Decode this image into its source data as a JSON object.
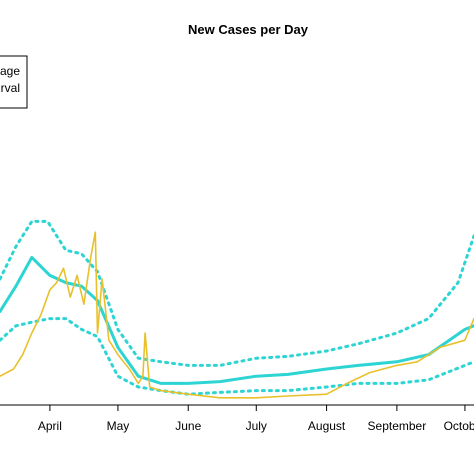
{
  "chart_data": {
    "type": "line",
    "title": "New Cases per Day",
    "xlabel": "",
    "ylabel": "",
    "grid": false,
    "legend_placement": "top-left",
    "legend_entries_visible": [
      "rage",
      "rval"
    ],
    "x_tick_labels": [
      "April",
      "May",
      "June",
      "July",
      "August",
      "September",
      "October"
    ],
    "x_day_of_month_ticks": [
      "2020-04-01",
      "2020-05-01",
      "2020-06-01",
      "2020-07-01",
      "2020-08-01",
      "2020-09-01",
      "2020-10-01"
    ],
    "xlim": [
      "2020-03-10",
      "2020-10-05"
    ],
    "ylim": [
      0,
      100
    ],
    "colors": {
      "average": "#2dd4d4",
      "interval": "#2dd4d4",
      "observed": "#e8c12a"
    },
    "series": [
      {
        "style": "cyan-solid-thick",
        "x": [
          "2020-03-10",
          "2020-03-17",
          "2020-03-24",
          "2020-04-01",
          "2020-04-08",
          "2020-04-15",
          "2020-04-22",
          "2020-05-01",
          "2020-05-10",
          "2020-05-20",
          "2020-06-01",
          "2020-06-15",
          "2020-07-01",
          "2020-07-15",
          "2020-08-01",
          "2020-08-15",
          "2020-09-01",
          "2020-09-15",
          "2020-10-01",
          "2020-10-05"
        ],
        "values": [
          26,
          33,
          41,
          36,
          34,
          33,
          29,
          16,
          8,
          6,
          6,
          6.5,
          8,
          8.5,
          10,
          11,
          12,
          14,
          21,
          22
        ]
      },
      {
        "style": "cyan-dotted-upper",
        "x": [
          "2020-03-10",
          "2020-03-17",
          "2020-03-24",
          "2020-03-31",
          "2020-04-08",
          "2020-04-15",
          "2020-04-22",
          "2020-05-01",
          "2020-05-10",
          "2020-05-20",
          "2020-06-01",
          "2020-06-15",
          "2020-07-01",
          "2020-07-15",
          "2020-08-01",
          "2020-08-15",
          "2020-09-01",
          "2020-09-15",
          "2020-09-28",
          "2020-10-05"
        ],
        "values": [
          35,
          44,
          51,
          51,
          43,
          42,
          37,
          21,
          13,
          12,
          11,
          11,
          13,
          13.5,
          15,
          17,
          20,
          24,
          34,
          47
        ]
      },
      {
        "style": "cyan-dotted-lower",
        "x": [
          "2020-03-10",
          "2020-03-17",
          "2020-03-24",
          "2020-04-01",
          "2020-04-08",
          "2020-04-15",
          "2020-04-22",
          "2020-05-01",
          "2020-05-10",
          "2020-05-20",
          "2020-06-01",
          "2020-06-15",
          "2020-07-01",
          "2020-07-15",
          "2020-08-01",
          "2020-08-15",
          "2020-09-01",
          "2020-09-15",
          "2020-10-01",
          "2020-10-05"
        ],
        "values": [
          18,
          22,
          23,
          24,
          24,
          21,
          19,
          8,
          5,
          4,
          3,
          3.5,
          4,
          4,
          5,
          6,
          6,
          7,
          11,
          12
        ]
      },
      {
        "style": "yellow-observed",
        "x": [
          "2020-03-10",
          "2020-03-16",
          "2020-03-20",
          "2020-03-24",
          "2020-03-28",
          "2020-04-01",
          "2020-04-04",
          "2020-04-07",
          "2020-04-10",
          "2020-04-13",
          "2020-04-16",
          "2020-04-19",
          "2020-04-21",
          "2020-04-22",
          "2020-04-24",
          "2020-04-27",
          "2020-05-01",
          "2020-05-06",
          "2020-05-10",
          "2020-05-12",
          "2020-05-13",
          "2020-05-15",
          "2020-05-20",
          "2020-06-01",
          "2020-06-15",
          "2020-07-01",
          "2020-07-15",
          "2020-08-01",
          "2020-08-10",
          "2020-08-20",
          "2020-09-01",
          "2020-09-10",
          "2020-09-20",
          "2020-10-01",
          "2020-10-05"
        ],
        "values": [
          8,
          10,
          14,
          20,
          25,
          32,
          34,
          38,
          30,
          36,
          28,
          41,
          48,
          20,
          35,
          18,
          14,
          10,
          6,
          8,
          20,
          5,
          4,
          3,
          2,
          2,
          2.5,
          3,
          6,
          9,
          11,
          12,
          16,
          18,
          24
        ]
      }
    ]
  }
}
